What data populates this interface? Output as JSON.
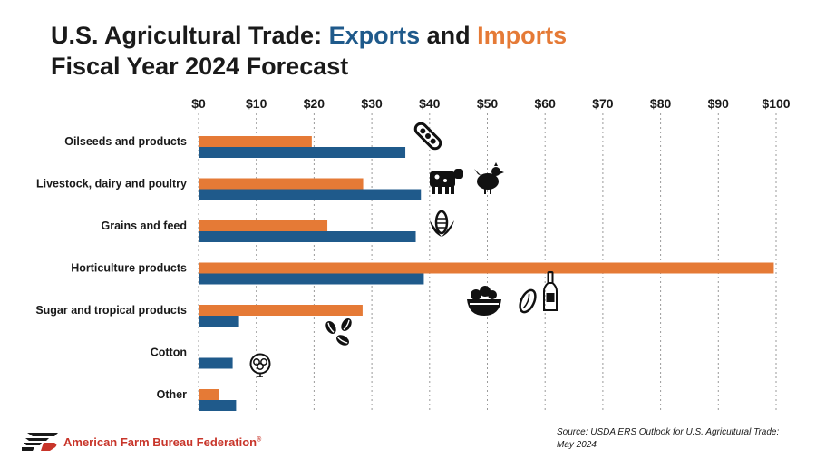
{
  "header": {
    "title_prefix": "U.S. Agricultural Trade: ",
    "title_exports": "Exports",
    "title_and": " and ",
    "title_imports": "Imports",
    "subtitle": "Fiscal Year 2024 Forecast"
  },
  "colors": {
    "exports": "#1f5a8b",
    "imports": "#e57a36",
    "text": "#1a1a1a",
    "logo": "#c8352a"
  },
  "chart_data": {
    "type": "bar",
    "orientation": "horizontal",
    "categories": [
      "Oilseeds and products",
      "Livestock, dairy and poultry",
      "Grains and feed",
      "Horticulture products",
      "Sugar and tropical products",
      "Cotton",
      "Other"
    ],
    "series": [
      {
        "name": "Imports",
        "color": "#e57a36",
        "values": [
          19.6,
          28.5,
          22.3,
          99.6,
          28.4,
          0,
          3.6
        ]
      },
      {
        "name": "Exports",
        "color": "#1f5a8b",
        "values": [
          35.8,
          38.5,
          37.6,
          39.0,
          7.0,
          5.9,
          6.5
        ]
      }
    ],
    "xlim": [
      0,
      100
    ],
    "x_ticks": [
      "$0",
      "$10",
      "$20",
      "$30",
      "$40",
      "$50",
      "$60",
      "$70",
      "$80",
      "$90",
      "$100"
    ],
    "x_axis_position": "top",
    "grid": "vertical-dotted",
    "icons": [
      "soybean-icon",
      "cow-icon",
      "chicken-icon",
      "corn-icon",
      "fruit-bowl-icon",
      "almond-icon",
      "wine-bottle-icon",
      "coffee-beans-icon",
      "cotton-boll-icon"
    ]
  },
  "footer": {
    "source_line1": "Source: USDA ERS Outlook for U.S. Agricultural Trade:",
    "source_line2": "May 2024",
    "org_name": "American Farm Bureau Federation",
    "org_mark": "FB",
    "registered": "®"
  }
}
